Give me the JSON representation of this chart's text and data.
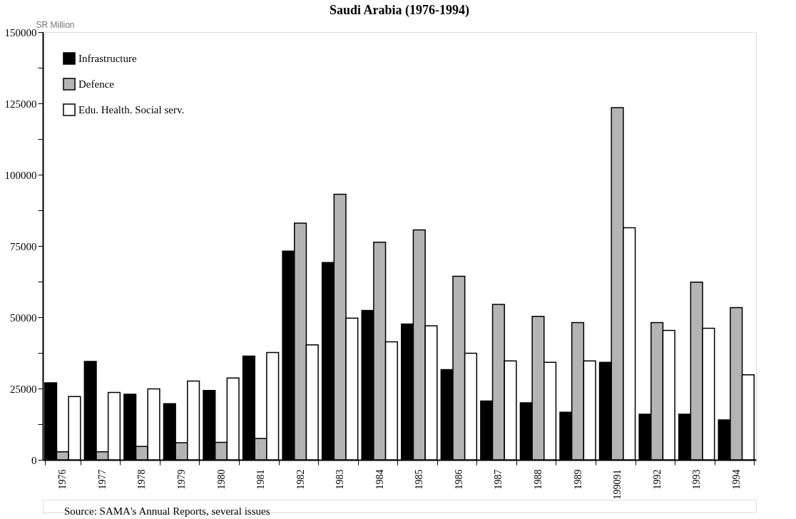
{
  "chart_data": {
    "type": "bar",
    "title": "Saudi Arabia (1976-1994)",
    "ylabel": "SR Million",
    "categories": [
      "1976",
      "1977",
      "1978",
      "1979",
      "1980",
      "1981",
      "1982",
      "1983",
      "1984",
      "1985",
      "1986",
      "1987",
      "1988",
      "1989",
      "199091",
      "1992",
      "1993",
      "1994"
    ],
    "series": [
      {
        "name": "Infrastructure",
        "color": "#000000",
        "values": [
          27000,
          34500,
          23000,
          19700,
          24300,
          36400,
          73200,
          69200,
          52400,
          47600,
          31600,
          20600,
          20000,
          16700,
          34200,
          16000,
          16000,
          14000
        ]
      },
      {
        "name": "Defence",
        "color": "#b4b4b4",
        "values": [
          2800,
          2800,
          4700,
          6000,
          6100,
          7500,
          83000,
          93100,
          76300,
          80600,
          64400,
          54500,
          50300,
          48100,
          123500,
          48100,
          62300,
          53400
        ]
      },
      {
        "name": "Edu. Health. Social serv.",
        "color": "#ffffff",
        "values": [
          22200,
          23600,
          24900,
          27600,
          28700,
          37600,
          40300,
          49700,
          41400,
          47000,
          37400,
          34700,
          34200,
          34700,
          81400,
          45400,
          46100,
          29800
        ]
      }
    ],
    "ylim": [
      0,
      150000
    ],
    "yticks": [
      0,
      {
        "value": 12500,
        "label": null
      },
      25000,
      {
        "value": 37500,
        "label": null
      },
      50000,
      {
        "value": 62500,
        "label": null
      },
      75000,
      {
        "value": 87500,
        "label": null
      },
      100000,
      {
        "value": 112500,
        "label": null
      },
      125000,
      {
        "value": 137500,
        "label": null
      },
      150000
    ],
    "grid": false,
    "legend": "top left",
    "annotations": [
      "Source: SAMA's Annual Reports, several issues"
    ]
  }
}
